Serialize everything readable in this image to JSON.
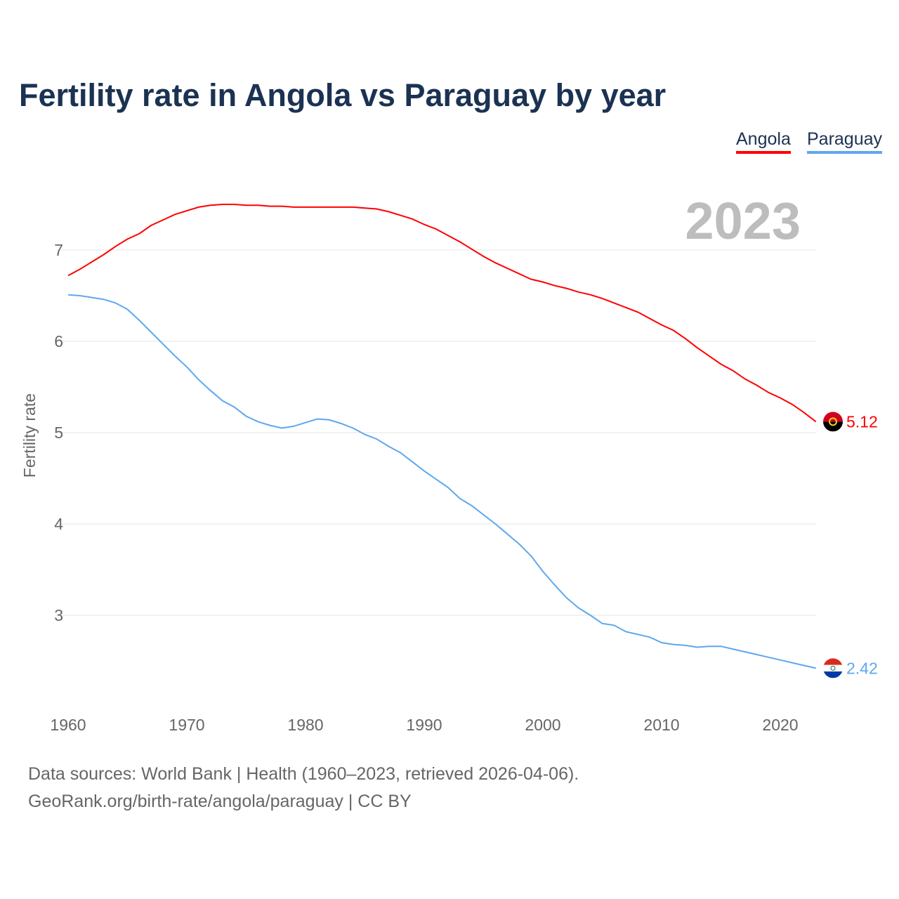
{
  "chart_data": {
    "type": "line",
    "title": "Fertility rate in Angola vs Paraguay by year",
    "xlabel": "",
    "ylabel": "Fertility rate",
    "xlim": [
      1960,
      2023
    ],
    "ylim": [
      2.1,
      7.8
    ],
    "x_ticks": [
      1960,
      1970,
      1980,
      1990,
      2000,
      2010,
      2020
    ],
    "y_ticks": [
      3,
      4,
      5,
      6,
      7
    ],
    "grid": true,
    "legend_position": "top-right",
    "year_watermark": "2023",
    "x": [
      1960,
      1961,
      1962,
      1963,
      1964,
      1965,
      1966,
      1967,
      1968,
      1969,
      1970,
      1971,
      1972,
      1973,
      1974,
      1975,
      1976,
      1977,
      1978,
      1979,
      1980,
      1981,
      1982,
      1983,
      1984,
      1985,
      1986,
      1987,
      1988,
      1989,
      1990,
      1991,
      1992,
      1993,
      1994,
      1995,
      1996,
      1997,
      1998,
      1999,
      2000,
      2001,
      2002,
      2003,
      2004,
      2005,
      2006,
      2007,
      2008,
      2009,
      2010,
      2011,
      2012,
      2013,
      2014,
      2015,
      2016,
      2017,
      2018,
      2019,
      2020,
      2021,
      2022,
      2023
    ],
    "series": [
      {
        "name": "Angola",
        "color": "#ff0000",
        "end_label": "5.12",
        "flag": "angola-flag",
        "values": [
          6.72,
          6.79,
          6.87,
          6.95,
          7.04,
          7.12,
          7.18,
          7.27,
          7.33,
          7.39,
          7.43,
          7.47,
          7.49,
          7.5,
          7.5,
          7.49,
          7.49,
          7.48,
          7.48,
          7.47,
          7.47,
          7.47,
          7.47,
          7.47,
          7.47,
          7.46,
          7.45,
          7.42,
          7.38,
          7.34,
          7.28,
          7.23,
          7.16,
          7.09,
          7.01,
          6.93,
          6.86,
          6.8,
          6.74,
          6.68,
          6.65,
          6.61,
          6.58,
          6.54,
          6.51,
          6.47,
          6.42,
          6.37,
          6.32,
          6.25,
          6.18,
          6.12,
          6.03,
          5.93,
          5.84,
          5.75,
          5.68,
          5.59,
          5.52,
          5.44,
          5.38,
          5.31,
          5.22,
          5.12
        ]
      },
      {
        "name": "Paraguay",
        "color": "#5ea7ef",
        "end_label": "2.42",
        "flag": "paraguay-flag",
        "values": [
          6.51,
          6.5,
          6.48,
          6.46,
          6.42,
          6.35,
          6.23,
          6.1,
          5.97,
          5.84,
          5.72,
          5.58,
          5.46,
          5.35,
          5.28,
          5.18,
          5.12,
          5.08,
          5.05,
          5.07,
          5.11,
          5.15,
          5.14,
          5.1,
          5.05,
          4.98,
          4.93,
          4.85,
          4.78,
          4.68,
          4.58,
          4.49,
          4.4,
          4.28,
          4.2,
          4.1,
          4.0,
          3.89,
          3.78,
          3.65,
          3.48,
          3.33,
          3.19,
          3.08,
          3.0,
          2.91,
          2.89,
          2.82,
          2.79,
          2.76,
          2.7,
          2.68,
          2.67,
          2.65,
          2.66,
          2.66,
          2.63,
          2.6,
          2.57,
          2.54,
          2.51,
          2.48,
          2.45,
          2.42
        ]
      }
    ]
  },
  "footer": {
    "line1": "Data sources: World Bank | Health (1960–2023, retrieved 2026-04-06).",
    "line2": "GeoRank.org/birth-rate/angola/paraguay | CC BY"
  }
}
